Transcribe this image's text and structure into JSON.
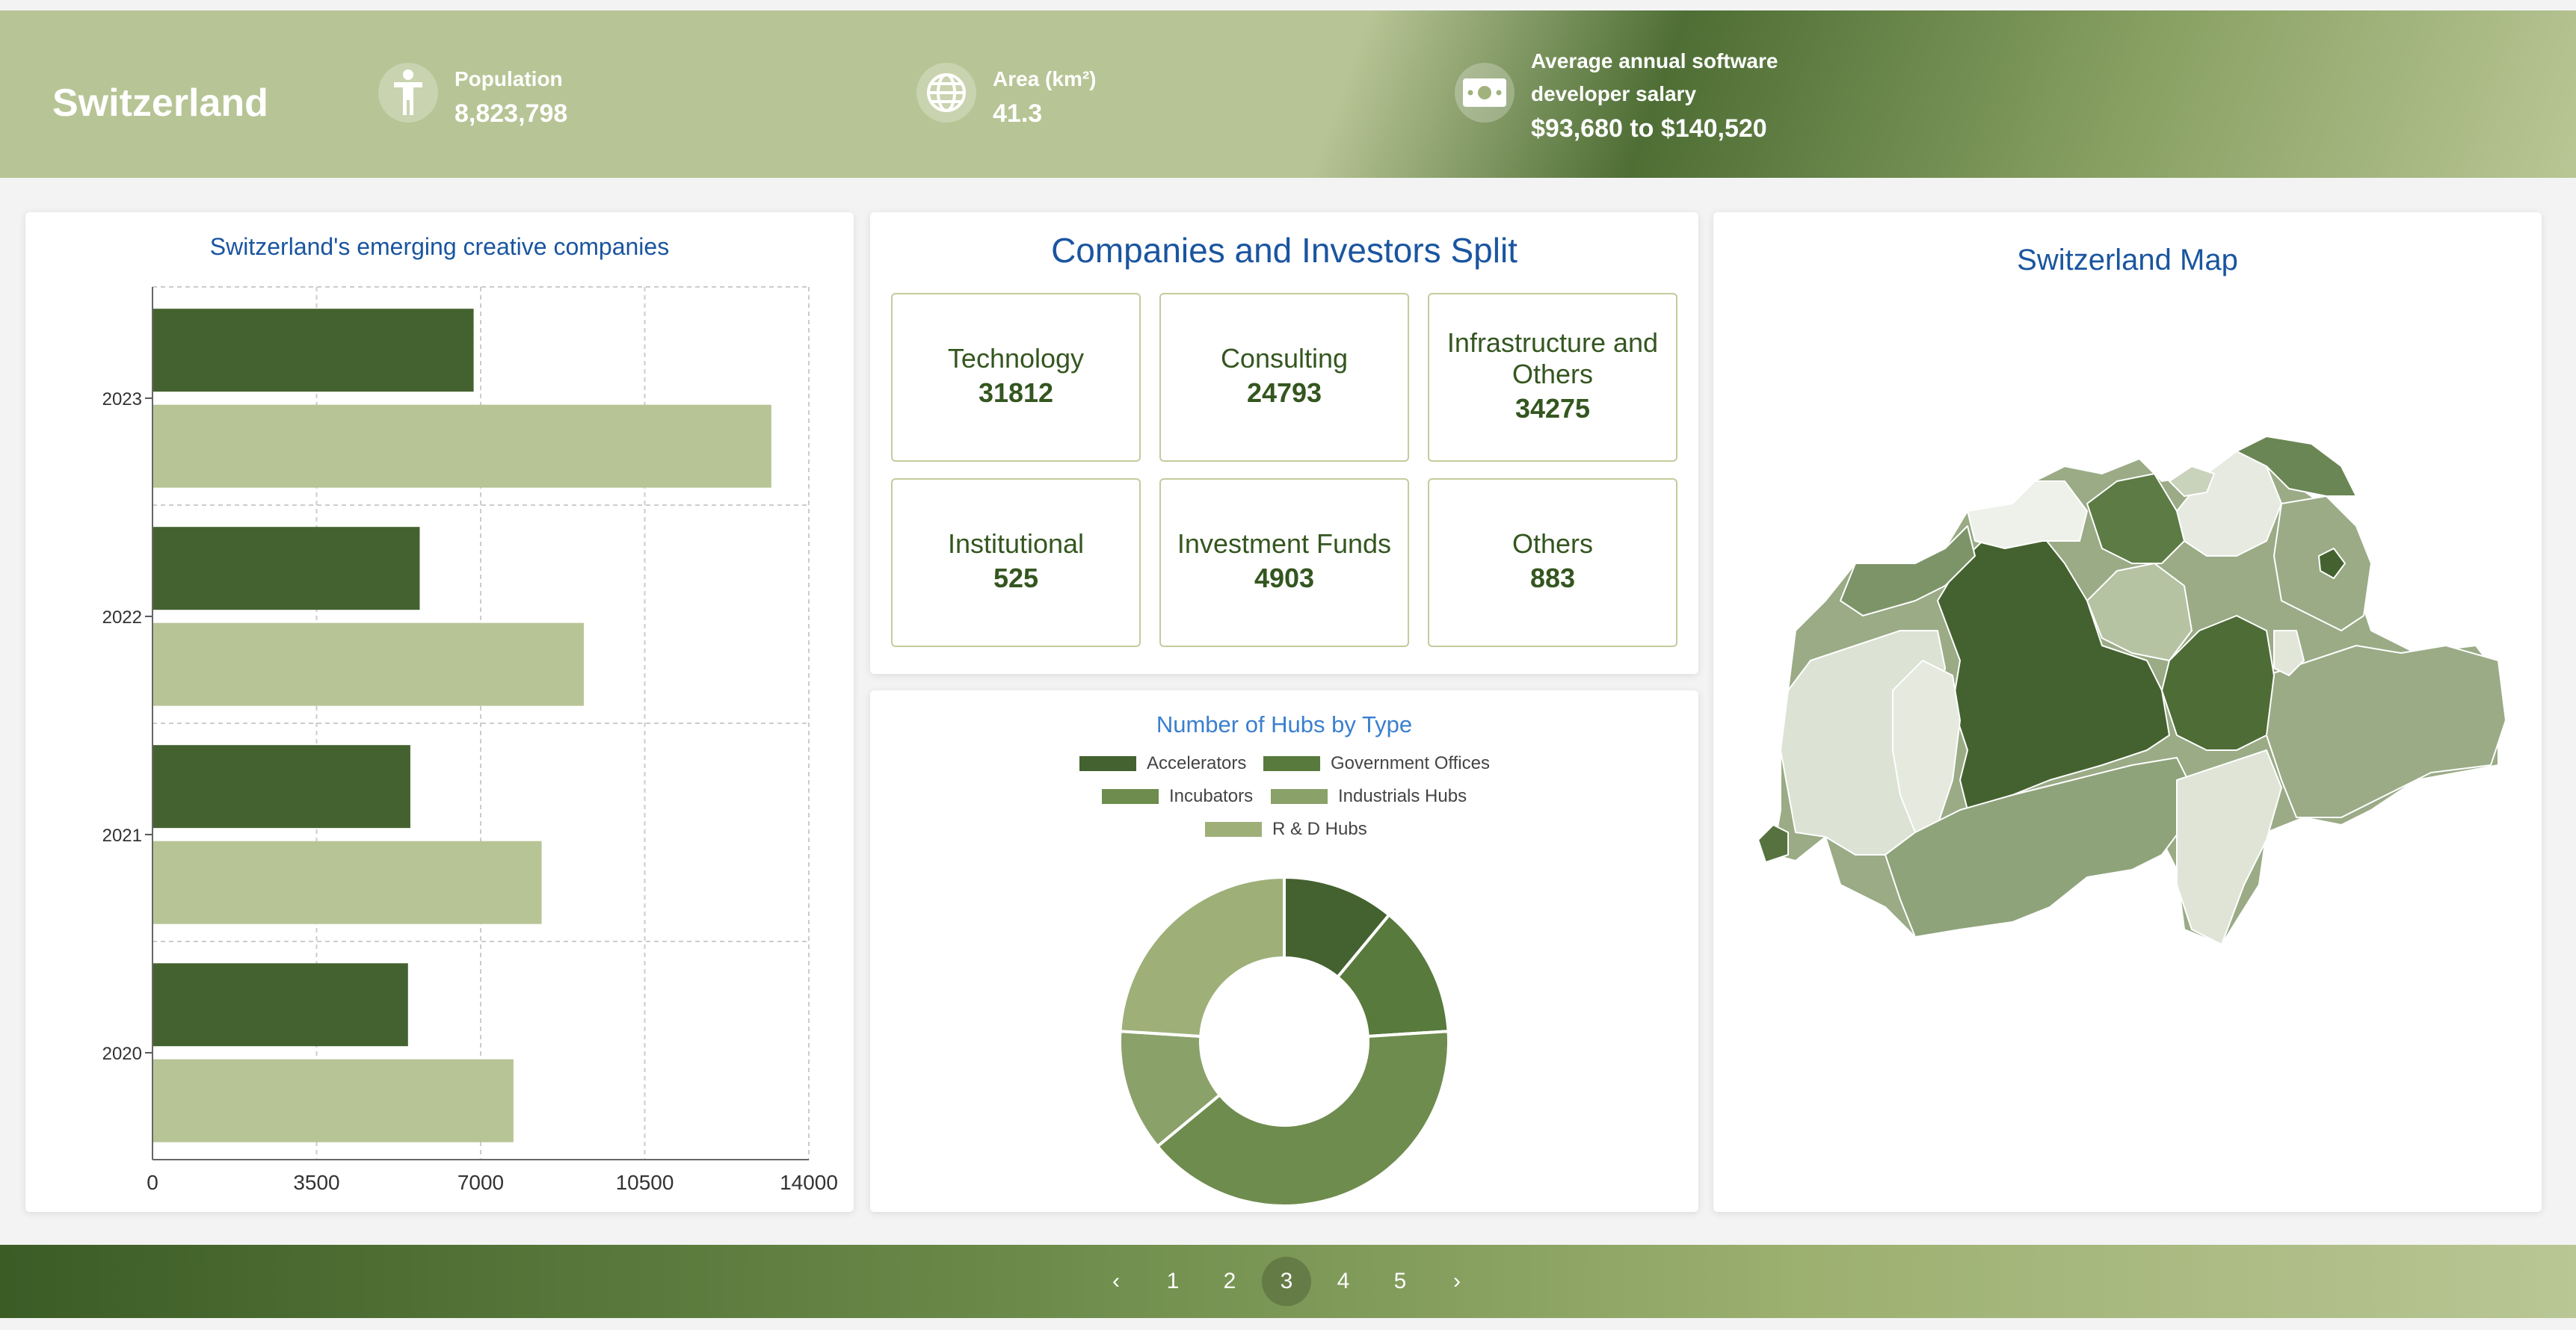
{
  "header": {
    "title": "Switzerland",
    "stats": [
      {
        "icon": "person-icon",
        "label": "Population",
        "value": "8,823,798"
      },
      {
        "icon": "globe-icon",
        "label": "Area (km²)",
        "value": "41.3"
      },
      {
        "icon": "money-icon",
        "label_line1": "Average annual software",
        "label_line2": "developer salary",
        "value": "$93,680 to $140,520"
      }
    ]
  },
  "bar_card": {
    "title": "Switzerland's emerging creative companies"
  },
  "split_card": {
    "title": "Companies and Investors Split",
    "tiles": [
      {
        "label": "Technology",
        "value": "31812"
      },
      {
        "label": "Consulting",
        "value": "24793"
      },
      {
        "label": "Infrastructure and Others",
        "value": "34275"
      },
      {
        "label": "Institutional",
        "value": "525"
      },
      {
        "label": "Investment Funds",
        "value": "4903"
      },
      {
        "label": "Others",
        "value": "883"
      }
    ]
  },
  "hubs_card": {
    "title": "Number of Hubs by Type",
    "legend": [
      "Accelerators",
      "Government Offices",
      "Incubators",
      "Industrials Hubs",
      "R & D Hubs"
    ]
  },
  "map_card": {
    "title": "Switzerland Map"
  },
  "pagination": {
    "prev": "‹",
    "pages": [
      "1",
      "2",
      "3",
      "4",
      "5"
    ],
    "active": "3",
    "next": "›"
  },
  "colors": {
    "dark_green": "#44622f",
    "light_green": "#b7c495",
    "accent_blue": "#1a55a0",
    "donut": [
      "#44622f",
      "#587a3c",
      "#6e8c4e",
      "#8aa16a",
      "#9eb078"
    ]
  },
  "chart_data": [
    {
      "type": "bar",
      "orientation": "horizontal",
      "title": "Switzerland's emerging creative companies",
      "categories": [
        "2023",
        "2022",
        "2021",
        "2020"
      ],
      "series": [
        {
          "name": "series-dark",
          "color": "#44622f",
          "values": [
            6850,
            5700,
            5500,
            5450
          ]
        },
        {
          "name": "series-light",
          "color": "#b7c495",
          "values": [
            13200,
            9200,
            8300,
            7700
          ]
        }
      ],
      "xlim": [
        0,
        14000
      ],
      "xticks": [
        "0",
        "3500",
        "7000",
        "10500",
        "14000"
      ],
      "grid": true
    },
    {
      "type": "pie",
      "subtype": "donut",
      "title": "Number of Hubs by Type",
      "labels": [
        "Accelerators",
        "Government Offices",
        "Incubators",
        "Industrials Hubs",
        "R & D Hubs"
      ],
      "values": [
        11,
        13,
        40,
        12,
        24
      ]
    }
  ]
}
